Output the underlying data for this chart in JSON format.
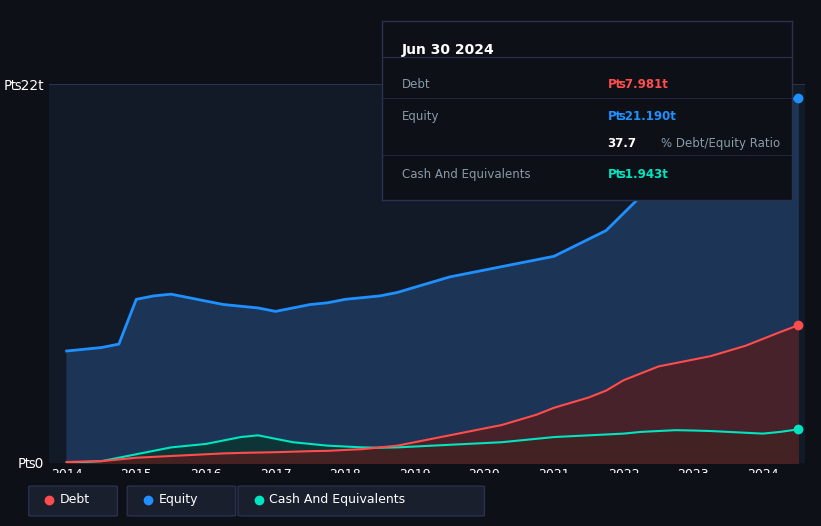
{
  "background_color": "#0d1117",
  "plot_bg_color": "#131a27",
  "title": "Jun 30 2024",
  "tooltip": {
    "date": "Jun 30 2024",
    "debt_label": "Debt",
    "debt_value": "₧7.981t",
    "equity_label": "Equity",
    "equity_value": "₧21.190t",
    "ratio_label": "37.7% Debt/Equity Ratio",
    "cash_label": "Cash And Equivalents",
    "cash_value": "₧1.943t"
  },
  "years": [
    2014.0,
    2014.25,
    2014.5,
    2014.75,
    2015.0,
    2015.25,
    2015.5,
    2015.75,
    2016.0,
    2016.25,
    2016.5,
    2016.75,
    2017.0,
    2017.25,
    2017.5,
    2017.75,
    2018.0,
    2018.25,
    2018.5,
    2018.75,
    2019.0,
    2019.25,
    2019.5,
    2019.75,
    2020.0,
    2020.25,
    2020.5,
    2020.75,
    2021.0,
    2021.25,
    2021.5,
    2021.75,
    2022.0,
    2022.25,
    2022.5,
    2022.75,
    2023.0,
    2023.25,
    2023.5,
    2023.75,
    2024.0,
    2024.25,
    2024.5
  ],
  "equity": [
    6.5,
    6.6,
    6.7,
    6.9,
    9.5,
    9.7,
    9.8,
    9.6,
    9.4,
    9.2,
    9.1,
    9.0,
    8.8,
    9.0,
    9.2,
    9.3,
    9.5,
    9.6,
    9.7,
    9.9,
    10.2,
    10.5,
    10.8,
    11.0,
    11.2,
    11.4,
    11.6,
    11.8,
    12.0,
    12.5,
    13.0,
    13.5,
    14.5,
    15.5,
    16.5,
    17.5,
    18.0,
    18.5,
    19.0,
    19.8,
    20.5,
    21.0,
    21.19
  ],
  "debt": [
    0.05,
    0.08,
    0.1,
    0.2,
    0.3,
    0.35,
    0.4,
    0.45,
    0.5,
    0.55,
    0.58,
    0.6,
    0.62,
    0.65,
    0.68,
    0.7,
    0.75,
    0.8,
    0.9,
    1.0,
    1.2,
    1.4,
    1.6,
    1.8,
    2.0,
    2.2,
    2.5,
    2.8,
    3.2,
    3.5,
    3.8,
    4.2,
    4.8,
    5.2,
    5.6,
    5.8,
    6.0,
    6.2,
    6.5,
    6.8,
    7.2,
    7.6,
    7.981
  ],
  "cash": [
    0.02,
    0.05,
    0.1,
    0.3,
    0.5,
    0.7,
    0.9,
    1.0,
    1.1,
    1.3,
    1.5,
    1.6,
    1.4,
    1.2,
    1.1,
    1.0,
    0.95,
    0.9,
    0.88,
    0.9,
    0.95,
    1.0,
    1.05,
    1.1,
    1.15,
    1.2,
    1.3,
    1.4,
    1.5,
    1.55,
    1.6,
    1.65,
    1.7,
    1.8,
    1.85,
    1.9,
    1.88,
    1.85,
    1.8,
    1.75,
    1.7,
    1.8,
    1.943
  ],
  "ylim": [
    0,
    22
  ],
  "yticks": [
    0,
    22
  ],
  "ytick_labels": [
    "₧0",
    "₧22t"
  ],
  "xticks": [
    2014,
    2015,
    2016,
    2017,
    2018,
    2019,
    2020,
    2021,
    2022,
    2023,
    2024
  ],
  "equity_color": "#1e90ff",
  "debt_color": "#ff4d4d",
  "cash_color": "#00e5c0",
  "equity_fill": "#1e3a5f",
  "debt_fill": "#5a1a1a",
  "cash_fill": "#0a3530",
  "legend_bg": "#1a1f2e",
  "legend_border": "#2a3050",
  "tooltip_bg": "#0d1117",
  "tooltip_border": "#2a3050",
  "debt_value_color": "#ff4d4d",
  "equity_value_color": "#1e90ff",
  "ratio_value_color": "#ffffff",
  "cash_value_color": "#00e5c0",
  "label_color": "#8899aa",
  "text_color": "#ffffff"
}
